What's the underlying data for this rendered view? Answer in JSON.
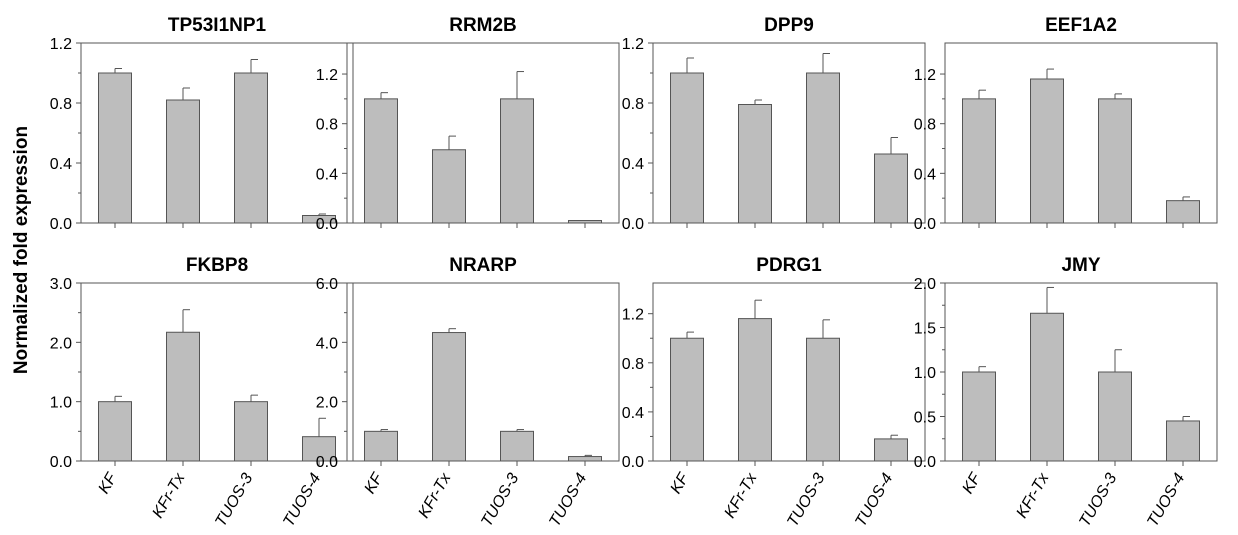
{
  "figure": {
    "ylabel": "Normalized fold expression",
    "colors": {
      "bar_fill": "#bdbdbd",
      "bar_stroke": "#555555",
      "axis": "#555555",
      "text": "#000000"
    }
  },
  "chart_data": [
    {
      "type": "bar",
      "title": "TP53I1NP1",
      "categories": [
        "KF",
        "KFr-Tx",
        "TUOS-3",
        "TUOS-4"
      ],
      "values": [
        1.0,
        0.82,
        1.0,
        0.05
      ],
      "errors": [
        0.03,
        0.08,
        0.09,
        0.01
      ],
      "ylim": [
        0,
        1.2
      ],
      "yticks": [
        "0.0",
        "0.4",
        "0.8",
        "1.2"
      ],
      "ytick_values": [
        0,
        0.4,
        0.8,
        1.2
      ]
    },
    {
      "type": "bar",
      "title": "RRM2B",
      "categories": [
        "KF",
        "KFr-Tx",
        "TUOS-3",
        "TUOS-4"
      ],
      "values": [
        1.0,
        0.59,
        1.0,
        0.02
      ],
      "errors": [
        0.05,
        0.11,
        0.22,
        0.0
      ],
      "ylim": [
        0,
        1.45
      ],
      "yticks": [
        "0.0",
        "0.4",
        "0.8",
        "1.2"
      ],
      "ytick_values": [
        0,
        0.4,
        0.8,
        1.2
      ]
    },
    {
      "type": "bar",
      "title": "DPP9",
      "categories": [
        "KF",
        "KFr-Tx",
        "TUOS-3",
        "TUOS-4"
      ],
      "values": [
        1.0,
        0.79,
        1.0,
        0.46
      ],
      "errors": [
        0.1,
        0.03,
        0.13,
        0.11
      ],
      "ylim": [
        0,
        1.2
      ],
      "yticks": [
        "0.0",
        "0.4",
        "0.8",
        "1.2"
      ],
      "ytick_values": [
        0,
        0.4,
        0.8,
        1.2
      ]
    },
    {
      "type": "bar",
      "title": "EEF1A2",
      "categories": [
        "KF",
        "KFr-Tx",
        "TUOS-3",
        "TUOS-4"
      ],
      "values": [
        1.0,
        1.16,
        1.0,
        0.18
      ],
      "errors": [
        0.07,
        0.08,
        0.04,
        0.03
      ],
      "ylim": [
        0,
        1.45
      ],
      "yticks": [
        "0.0",
        "0.4",
        "0.8",
        "1.2"
      ],
      "ytick_values": [
        0,
        0.4,
        0.8,
        1.2
      ]
    },
    {
      "type": "bar",
      "title": "FKBP8",
      "categories": [
        "KF",
        "KFr-Tx",
        "TUOS-3",
        "TUOS-4"
      ],
      "values": [
        1.0,
        2.17,
        1.0,
        0.41
      ],
      "errors": [
        0.09,
        0.38,
        0.11,
        0.31
      ],
      "ylim": [
        0,
        3.0
      ],
      "yticks": [
        "0.0",
        "1.0",
        "2.0",
        "3.0"
      ],
      "ytick_values": [
        0,
        1,
        2,
        3
      ]
    },
    {
      "type": "bar",
      "title": "NRARP",
      "categories": [
        "KF",
        "KFr-Tx",
        "TUOS-3",
        "TUOS-4"
      ],
      "values": [
        1.0,
        4.33,
        1.0,
        0.15
      ],
      "errors": [
        0.06,
        0.13,
        0.06,
        0.04
      ],
      "ylim": [
        0,
        6.0
      ],
      "yticks": [
        "0.0",
        "2.0",
        "4.0",
        "6.0"
      ],
      "ytick_values": [
        0,
        2,
        4,
        6
      ]
    },
    {
      "type": "bar",
      "title": "PDRG1",
      "categories": [
        "KF",
        "KFr-Tx",
        "TUOS-3",
        "TUOS-4"
      ],
      "values": [
        1.0,
        1.16,
        1.0,
        0.18
      ],
      "errors": [
        0.05,
        0.15,
        0.15,
        0.03
      ],
      "ylim": [
        0,
        1.45
      ],
      "yticks": [
        "0.0",
        "0.4",
        "0.8",
        "1.2"
      ],
      "ytick_values": [
        0,
        0.4,
        0.8,
        1.2
      ]
    },
    {
      "type": "bar",
      "title": "JMY",
      "categories": [
        "KF",
        "KFr-Tx",
        "TUOS-3",
        "TUOS-4"
      ],
      "values": [
        1.0,
        1.66,
        1.0,
        0.45
      ],
      "errors": [
        0.06,
        0.29,
        0.25,
        0.05
      ],
      "ylim": [
        0,
        2.0
      ],
      "yticks": [
        "0.0",
        "0.5",
        "1.0",
        "1.5",
        "2.0"
      ],
      "ytick_values": [
        0,
        0.5,
        1.0,
        1.5,
        2.0
      ]
    }
  ]
}
